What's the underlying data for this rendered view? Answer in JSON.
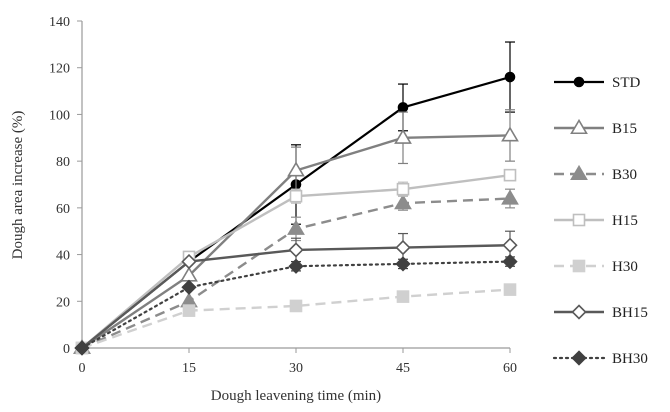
{
  "chart_data": {
    "type": "line",
    "title": "",
    "xlabel": "Dough leavening time (min)",
    "ylabel": "Dough area increase (%)",
    "x": [
      0,
      15,
      30,
      45,
      60
    ],
    "xticks": [
      "0",
      "15",
      "30",
      "45",
      "60"
    ],
    "yticks": [
      "0",
      "20",
      "40",
      "60",
      "80",
      "100",
      "120",
      "140"
    ],
    "xlim": [
      0,
      60
    ],
    "ylim": [
      0,
      140
    ],
    "grid": false,
    "legend_position": "right",
    "series": [
      {
        "name": "STD",
        "values": [
          0,
          37,
          70,
          103,
          116
        ],
        "errors": [
          0,
          0,
          17,
          10,
          15
        ],
        "color": "#000000",
        "dash": "solid",
        "marker": "circle",
        "width": 2.2
      },
      {
        "name": "B15",
        "values": [
          0,
          31,
          76,
          90,
          91
        ],
        "errors": [
          0,
          0,
          10,
          11,
          11
        ],
        "color": "#808080",
        "dash": "solid",
        "marker": "triangle-open",
        "width": 2.4
      },
      {
        "name": "B30",
        "values": [
          0,
          20,
          51,
          62,
          64
        ],
        "errors": [
          0,
          0,
          5,
          3,
          4
        ],
        "color": "#8c8c8c",
        "dash": "dashed",
        "marker": "triangle-filled",
        "width": 2.4
      },
      {
        "name": "H15",
        "values": [
          0,
          39,
          65,
          68,
          74
        ],
        "errors": [
          0,
          0,
          3,
          3,
          2
        ],
        "color": "#bfbfbf",
        "dash": "solid",
        "marker": "square-open",
        "width": 2.4
      },
      {
        "name": "H30",
        "values": [
          0,
          16,
          18,
          22,
          25
        ],
        "errors": [
          0,
          0,
          1,
          1,
          1
        ],
        "color": "#d0d0d0",
        "dash": "dashed",
        "marker": "square-filled",
        "width": 2.4
      },
      {
        "name": "BH15",
        "values": [
          0,
          37,
          42,
          43,
          44
        ],
        "errors": [
          0,
          0,
          5,
          6,
          6
        ],
        "color": "#595959",
        "dash": "solid",
        "marker": "diamond-open",
        "width": 2.4
      },
      {
        "name": "BH30",
        "values": [
          0,
          26,
          35,
          36,
          37
        ],
        "errors": [
          0,
          0,
          2,
          2,
          2
        ],
        "color": "#404040",
        "dash": "dotted",
        "marker": "diamond-filled",
        "width": 2.2
      }
    ]
  }
}
